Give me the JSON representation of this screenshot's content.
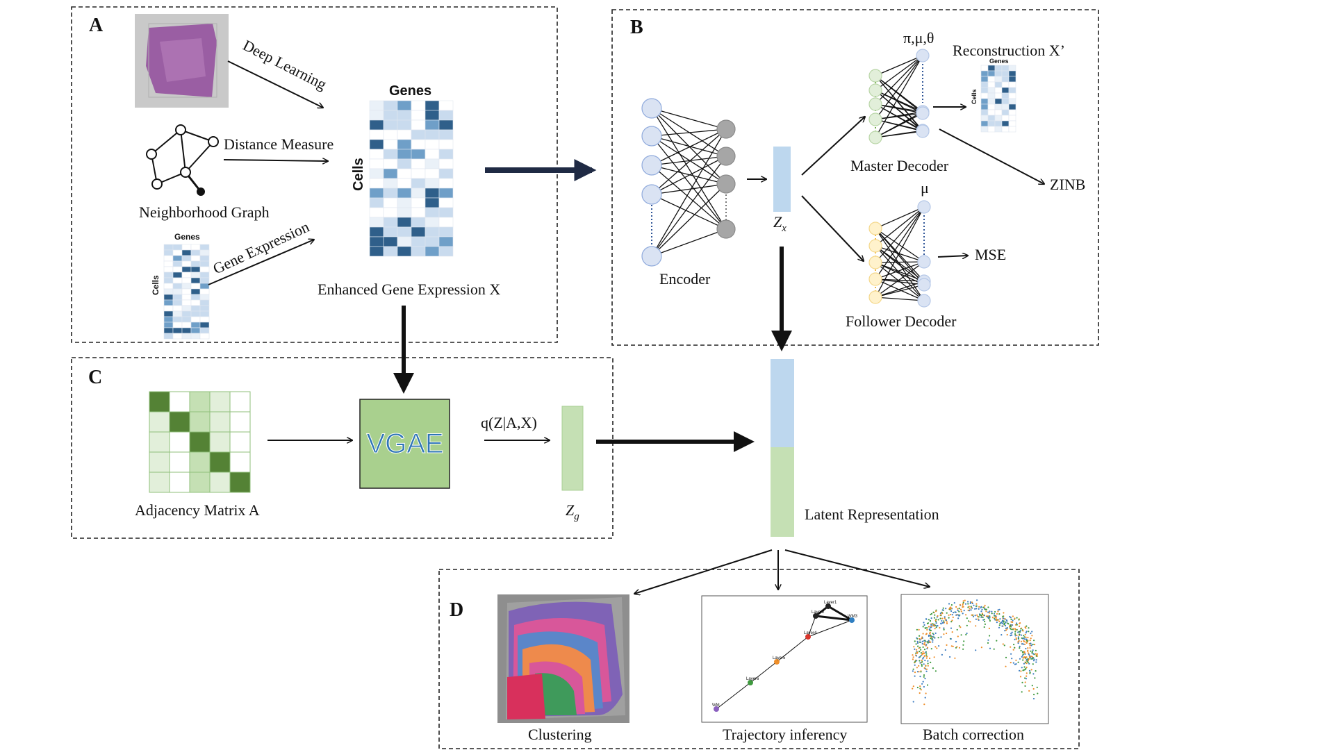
{
  "panels": {
    "a": {
      "letter": "A",
      "deep_learning": "Deep Learning",
      "distance_measure": "Distance Measure",
      "neighborhood_graph": "Neighborhood Graph",
      "gene_expression": "Gene Expression",
      "small_genes": "Genes",
      "small_cells": "Cells",
      "big_genes": "Genes",
      "big_cells": "Cells",
      "enhanced": "Enhanced Gene Expression X"
    },
    "b": {
      "letter": "B",
      "params": "π,μ,θ",
      "reconstruction": "Reconstruction X’",
      "recon_genes": "Genes",
      "recon_cells": "Cells",
      "master_decoder": "Master Decoder",
      "zinb": "ZINB",
      "mu": "μ",
      "mse": "MSE",
      "encoder": "Encoder",
      "zx": "Z",
      "zx_sub": "x",
      "follower_decoder": "Follower Decoder"
    },
    "c": {
      "letter": "C",
      "adjacency": "Adjacency Matrix A",
      "vgae": "VGAE",
      "q": "q(Z|A,X)",
      "zg": "Z",
      "zg_sub": "g"
    },
    "latent": "Latent Representation",
    "d": {
      "letter": "D",
      "clustering": "Clustering",
      "trajectory": "Trajectory inferency",
      "batch": "Batch correction",
      "traj_nodes": [
        "Layer1",
        "Layer2",
        "WM3",
        "Layer4",
        "Layer5",
        "Layer6",
        "WM"
      ]
    }
  },
  "colors": {
    "blue_light": "#bdd7ee",
    "green_light": "#c5e0b4",
    "green_dark": "#548235",
    "vgae_fill": "#a9d08e",
    "vgae_text": "#2e75b6",
    "node_blue": "#dae3f3",
    "node_gray": "#a6a6a6",
    "node_green": "#e2efda",
    "node_yellow": "#fff2cc",
    "heat_dark": "#2f5f8a",
    "heat_mid": "#6f9fc8",
    "heat_light": "#c9dbee"
  },
  "icons": [
    "tissue-image-icon",
    "neighborhood-graph-icon",
    "heatmap-icon",
    "neural-net-icon",
    "adjacency-matrix-icon",
    "clustering-image-icon",
    "trajectory-plot-icon",
    "batch-correction-plot-icon"
  ]
}
